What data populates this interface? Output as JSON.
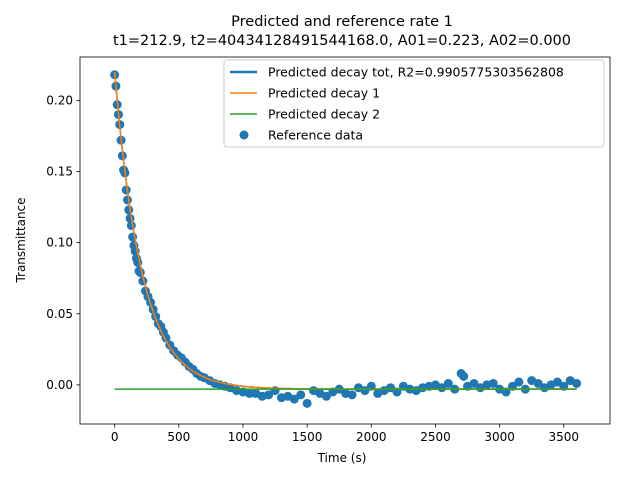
{
  "chart_data": {
    "type": "line",
    "title": "Predicted and reference rate 1",
    "subtitle": "t1=212.9, t2=40434128491544168.0, A01=0.223, A02=0.000",
    "xlabel": "Time (s)",
    "ylabel": "Transmittance",
    "xlim": [
      -270,
      3860
    ],
    "ylim": [
      -0.0275,
      0.2305
    ],
    "x_ticks": [
      0,
      500,
      1000,
      1500,
      2000,
      2500,
      3000,
      3500
    ],
    "x_tick_labels": [
      "0",
      "500",
      "1000",
      "1500",
      "2000",
      "2500",
      "3000",
      "3500"
    ],
    "y_ticks": [
      0.0,
      0.05,
      0.1,
      0.15,
      0.2
    ],
    "y_tick_labels": [
      "0.00",
      "0.05",
      "0.10",
      "0.15",
      "0.20"
    ],
    "grid": false,
    "legend_position": "top-right",
    "series": [
      {
        "name": "Predicted decay tot, R2=0.9905775303562808",
        "kind": "line",
        "color": "#1f77b4",
        "model": {
          "A1": 0.223,
          "t1": 212.9,
          "offset": -0.003
        },
        "x_range": [
          0,
          3600
        ]
      },
      {
        "name": "Predicted decay 1",
        "kind": "line",
        "color": "#ff7f0e",
        "model": {
          "A1": 0.223,
          "t1": 212.9,
          "offset": -0.003
        },
        "x_range": [
          0,
          3600
        ]
      },
      {
        "name": "Predicted decay 2",
        "kind": "line",
        "color": "#2ca02c",
        "x": [
          0,
          3600
        ],
        "y": [
          -0.003,
          -0.003
        ]
      },
      {
        "name": "Reference data",
        "kind": "scatter",
        "color": "#1f77b4",
        "x": [
          0,
          10,
          20,
          30,
          40,
          50,
          60,
          70,
          80,
          90,
          100,
          110,
          120,
          130,
          140,
          150,
          160,
          170,
          180,
          190,
          200,
          220,
          240,
          260,
          280,
          300,
          320,
          340,
          360,
          380,
          400,
          430,
          460,
          490,
          520,
          550,
          580,
          610,
          640,
          670,
          700,
          740,
          780,
          820,
          860,
          900,
          950,
          1000,
          1050,
          1100,
          1150,
          1200,
          1250,
          1300,
          1350,
          1400,
          1450,
          1500,
          1550,
          1600,
          1650,
          1700,
          1750,
          1800,
          1850,
          1900,
          1950,
          2000,
          2050,
          2100,
          2150,
          2200,
          2250,
          2300,
          2350,
          2400,
          2450,
          2500,
          2550,
          2600,
          2650,
          2700,
          2720,
          2750,
          2800,
          2850,
          2900,
          2950,
          3000,
          3050,
          3100,
          3150,
          3200,
          3250,
          3300,
          3350,
          3400,
          3450,
          3500,
          3550,
          3600
        ],
        "y": [
          0.218,
          0.21,
          0.197,
          0.19,
          0.183,
          0.172,
          0.161,
          0.151,
          0.149,
          0.137,
          0.13,
          0.123,
          0.117,
          0.112,
          0.104,
          0.098,
          0.094,
          0.089,
          0.086,
          0.08,
          0.079,
          0.073,
          0.066,
          0.062,
          0.058,
          0.053,
          0.048,
          0.043,
          0.041,
          0.037,
          0.033,
          0.028,
          0.024,
          0.021,
          0.019,
          0.016,
          0.013,
          0.011,
          0.008,
          0.006,
          0.005,
          0.003,
          0.001,
          0.0,
          -0.001,
          -0.002,
          -0.004,
          -0.005,
          -0.006,
          -0.006,
          -0.008,
          -0.007,
          -0.004,
          -0.009,
          -0.008,
          -0.01,
          -0.007,
          -0.013,
          -0.004,
          -0.006,
          -0.008,
          -0.005,
          -0.003,
          -0.006,
          -0.007,
          -0.002,
          -0.004,
          -0.001,
          -0.006,
          -0.004,
          -0.002,
          -0.005,
          -0.001,
          -0.003,
          -0.004,
          -0.002,
          -0.001,
          0.0,
          -0.002,
          0.001,
          -0.003,
          0.008,
          0.006,
          -0.001,
          0.001,
          -0.002,
          0.0,
          0.001,
          -0.003,
          -0.005,
          -0.001,
          0.002,
          -0.003,
          0.003,
          0.001,
          -0.002,
          0.0,
          0.002,
          -0.001,
          0.003,
          0.001
        ]
      }
    ]
  }
}
